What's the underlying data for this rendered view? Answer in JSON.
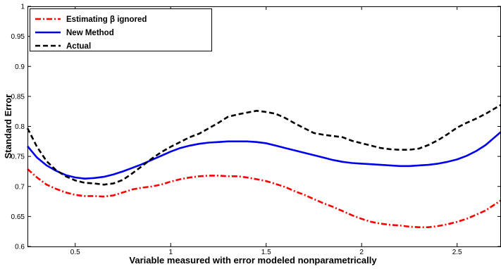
{
  "chart_data": {
    "type": "line",
    "title": "",
    "xlabel": "Variable measured with error modeled nonparametrically",
    "ylabel": "Standard Error",
    "xlim": [
      0.25,
      2.73
    ],
    "ylim": [
      0.6,
      1.0
    ],
    "xticks": [
      0.5,
      1,
      1.5,
      2,
      2.5
    ],
    "xtick_labels": [
      "0.5",
      "1",
      "1.5",
      "2",
      "2.5"
    ],
    "yticks": [
      0.6,
      0.65,
      0.7,
      0.75,
      0.8,
      0.85,
      0.9,
      0.95,
      1.0
    ],
    "ytick_labels": [
      "0.6",
      "0.65",
      "0.7",
      "0.75",
      "0.8",
      "0.85",
      "0.9",
      "0.95",
      "1"
    ],
    "grid": false,
    "legend_position": "top-left",
    "series": [
      {
        "name": "Estimating β ignored",
        "color": "#ff0000",
        "style": "dash-dot",
        "x": [
          0.25,
          0.3,
          0.35,
          0.4,
          0.45,
          0.5,
          0.55,
          0.6,
          0.65,
          0.7,
          0.75,
          0.8,
          0.85,
          0.9,
          0.95,
          1.0,
          1.05,
          1.1,
          1.15,
          1.2,
          1.25,
          1.3,
          1.35,
          1.4,
          1.45,
          1.5,
          1.55,
          1.6,
          1.65,
          1.7,
          1.75,
          1.8,
          1.85,
          1.9,
          1.95,
          2.0,
          2.05,
          2.1,
          2.15,
          2.2,
          2.25,
          2.3,
          2.35,
          2.4,
          2.45,
          2.5,
          2.55,
          2.6,
          2.65,
          2.73
        ],
        "y": [
          0.729,
          0.715,
          0.703,
          0.696,
          0.69,
          0.686,
          0.684,
          0.684,
          0.683,
          0.685,
          0.69,
          0.695,
          0.698,
          0.7,
          0.703,
          0.708,
          0.712,
          0.715,
          0.717,
          0.718,
          0.718,
          0.717,
          0.717,
          0.715,
          0.712,
          0.709,
          0.704,
          0.699,
          0.692,
          0.686,
          0.679,
          0.672,
          0.666,
          0.659,
          0.652,
          0.646,
          0.641,
          0.638,
          0.636,
          0.635,
          0.633,
          0.632,
          0.632,
          0.634,
          0.637,
          0.641,
          0.646,
          0.653,
          0.66,
          0.677
        ]
      },
      {
        "name": "New Method",
        "color": "#0000ee",
        "style": "solid",
        "x": [
          0.25,
          0.3,
          0.35,
          0.4,
          0.45,
          0.5,
          0.55,
          0.6,
          0.65,
          0.7,
          0.75,
          0.8,
          0.85,
          0.9,
          0.95,
          1.0,
          1.05,
          1.1,
          1.15,
          1.2,
          1.25,
          1.3,
          1.35,
          1.4,
          1.45,
          1.5,
          1.55,
          1.6,
          1.65,
          1.7,
          1.75,
          1.8,
          1.85,
          1.9,
          1.95,
          2.0,
          2.05,
          2.1,
          2.15,
          2.2,
          2.25,
          2.3,
          2.35,
          2.4,
          2.45,
          2.5,
          2.55,
          2.6,
          2.65,
          2.73
        ],
        "y": [
          0.767,
          0.748,
          0.735,
          0.726,
          0.719,
          0.715,
          0.713,
          0.714,
          0.716,
          0.72,
          0.725,
          0.731,
          0.737,
          0.744,
          0.751,
          0.758,
          0.764,
          0.768,
          0.771,
          0.773,
          0.774,
          0.775,
          0.775,
          0.775,
          0.774,
          0.772,
          0.768,
          0.764,
          0.76,
          0.756,
          0.752,
          0.748,
          0.744,
          0.741,
          0.739,
          0.738,
          0.737,
          0.736,
          0.735,
          0.734,
          0.734,
          0.735,
          0.736,
          0.738,
          0.741,
          0.745,
          0.751,
          0.759,
          0.769,
          0.791
        ]
      },
      {
        "name": "Actual",
        "color": "#000000",
        "style": "dashed",
        "x": [
          0.25,
          0.3,
          0.35,
          0.4,
          0.45,
          0.5,
          0.55,
          0.6,
          0.65,
          0.7,
          0.75,
          0.8,
          0.85,
          0.9,
          0.95,
          1.0,
          1.05,
          1.1,
          1.15,
          1.2,
          1.25,
          1.3,
          1.35,
          1.4,
          1.45,
          1.5,
          1.55,
          1.6,
          1.65,
          1.7,
          1.75,
          1.8,
          1.85,
          1.9,
          1.95,
          2.0,
          2.05,
          2.1,
          2.15,
          2.2,
          2.25,
          2.3,
          2.35,
          2.4,
          2.45,
          2.5,
          2.55,
          2.6,
          2.65,
          2.73
        ],
        "y": [
          0.797,
          0.766,
          0.742,
          0.727,
          0.717,
          0.71,
          0.706,
          0.705,
          0.703,
          0.705,
          0.711,
          0.722,
          0.734,
          0.746,
          0.757,
          0.766,
          0.774,
          0.782,
          0.788,
          0.797,
          0.806,
          0.816,
          0.82,
          0.823,
          0.826,
          0.824,
          0.821,
          0.814,
          0.805,
          0.797,
          0.789,
          0.786,
          0.784,
          0.782,
          0.776,
          0.772,
          0.768,
          0.764,
          0.762,
          0.761,
          0.761,
          0.763,
          0.769,
          0.777,
          0.787,
          0.798,
          0.806,
          0.813,
          0.821,
          0.836
        ]
      }
    ]
  }
}
